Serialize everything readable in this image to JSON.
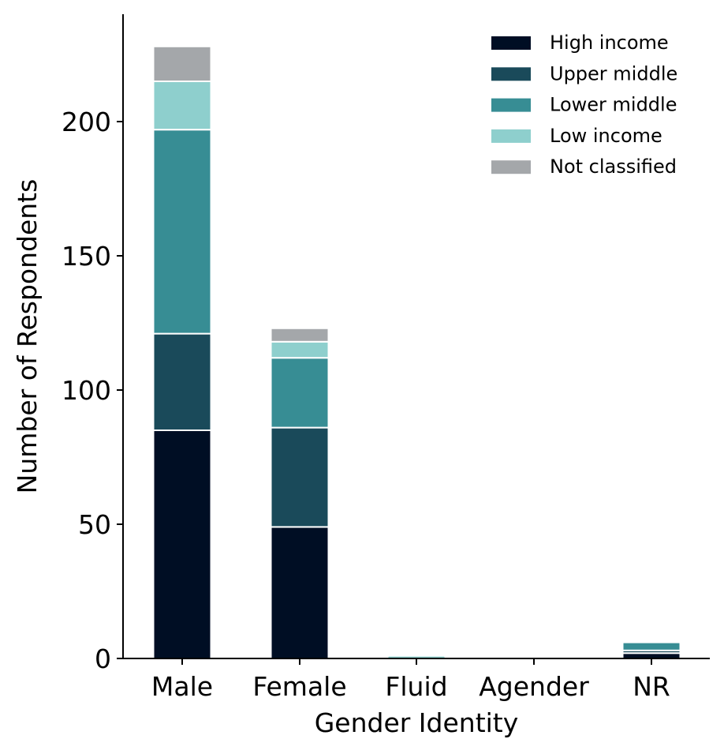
{
  "chart_data": {
    "type": "bar",
    "stacked": true,
    "title": "",
    "xlabel": "Gender Identity",
    "ylabel": "Number of Respondents",
    "categories": [
      "Male",
      "Female",
      "Fluid",
      "Agender",
      "NR"
    ],
    "ylim": [
      0,
      240
    ],
    "yticks": [
      0,
      50,
      100,
      150,
      200
    ],
    "legend_position": "top-right",
    "grid": false,
    "series": [
      {
        "name": "High income",
        "color": "#000e24",
        "values": [
          85,
          49,
          0,
          0,
          2
        ]
      },
      {
        "name": "Upper middle",
        "color": "#1a4a5a",
        "values": [
          36,
          37,
          0,
          0,
          1
        ]
      },
      {
        "name": "Lower middle",
        "color": "#378d94",
        "values": [
          76,
          26,
          0,
          0,
          3
        ]
      },
      {
        "name": "Low income",
        "color": "#8ecfcd",
        "values": [
          18,
          6,
          1,
          0,
          0
        ]
      },
      {
        "name": "Not classified",
        "color": "#a4a7aa",
        "values": [
          13,
          5,
          0,
          0,
          0
        ]
      }
    ]
  }
}
